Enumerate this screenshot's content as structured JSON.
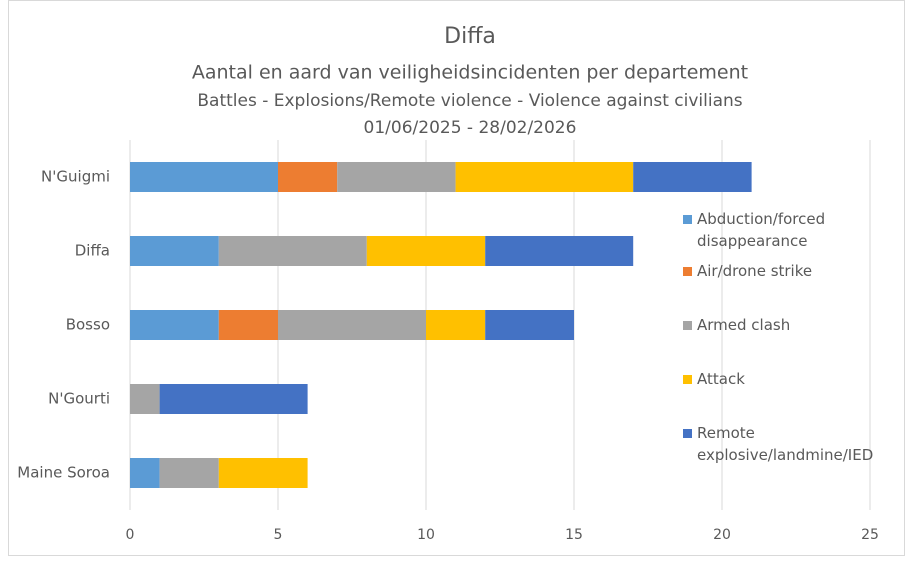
{
  "chart_data": {
    "type": "stacked-barh",
    "title": "Diffa",
    "subtitle": [
      "Aantal en aard van veiligheidsincidenten per departement",
      "Battles - Explosions/Remote violence - Violence against civilians",
      "01/06/2025 - 28/02/2026"
    ],
    "categories": [
      "N'Guigmi",
      "Diffa",
      "Bosso",
      "N'Gourti",
      "Maine Soroa"
    ],
    "series": [
      {
        "name": "Abduction/forced disappearance",
        "color": "#5b9bd5",
        "values": [
          5,
          3,
          3,
          0,
          1
        ]
      },
      {
        "name": "Air/drone strike",
        "color": "#ed7d31",
        "values": [
          2,
          0,
          2,
          0,
          0
        ]
      },
      {
        "name": "Armed clash",
        "color": "#a5a5a5",
        "values": [
          4,
          5,
          5,
          1,
          2
        ]
      },
      {
        "name": "Attack",
        "color": "#ffc000",
        "values": [
          6,
          4,
          2,
          0,
          3
        ]
      },
      {
        "name": "Remote explosive/landmine/IED",
        "color": "#4472c4",
        "values": [
          4,
          5,
          3,
          5,
          0
        ]
      }
    ],
    "xlim": [
      0,
      25
    ],
    "xticks": [
      0,
      5,
      10,
      15,
      20,
      25
    ],
    "grid": true,
    "legend": "right"
  }
}
